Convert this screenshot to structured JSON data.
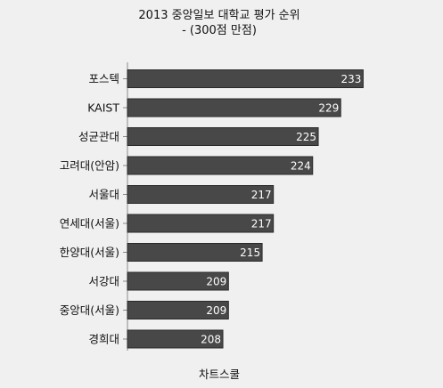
{
  "chart_data": {
    "type": "bar",
    "orientation": "horizontal",
    "title": "2013 중앙일보 대학교 평가 순위",
    "subtitle": "- (300점 만점)",
    "xlabel": "차트스쿨",
    "ylabel": "",
    "categories": [
      "포스텍",
      "KAIST",
      "성균관대",
      "고려대(안암)",
      "서울대",
      "연세대(서울)",
      "한양대(서울)",
      "서강대",
      "중앙대(서울)",
      "경희대"
    ],
    "values": [
      233,
      229,
      225,
      224,
      217,
      217,
      215,
      209,
      209,
      208
    ],
    "xlim": [
      191,
      235
    ],
    "grid": false,
    "legend": "none",
    "bar_color": "#484848",
    "bar_stroke": "#2a2a2a",
    "background": "#f0f0f0"
  }
}
